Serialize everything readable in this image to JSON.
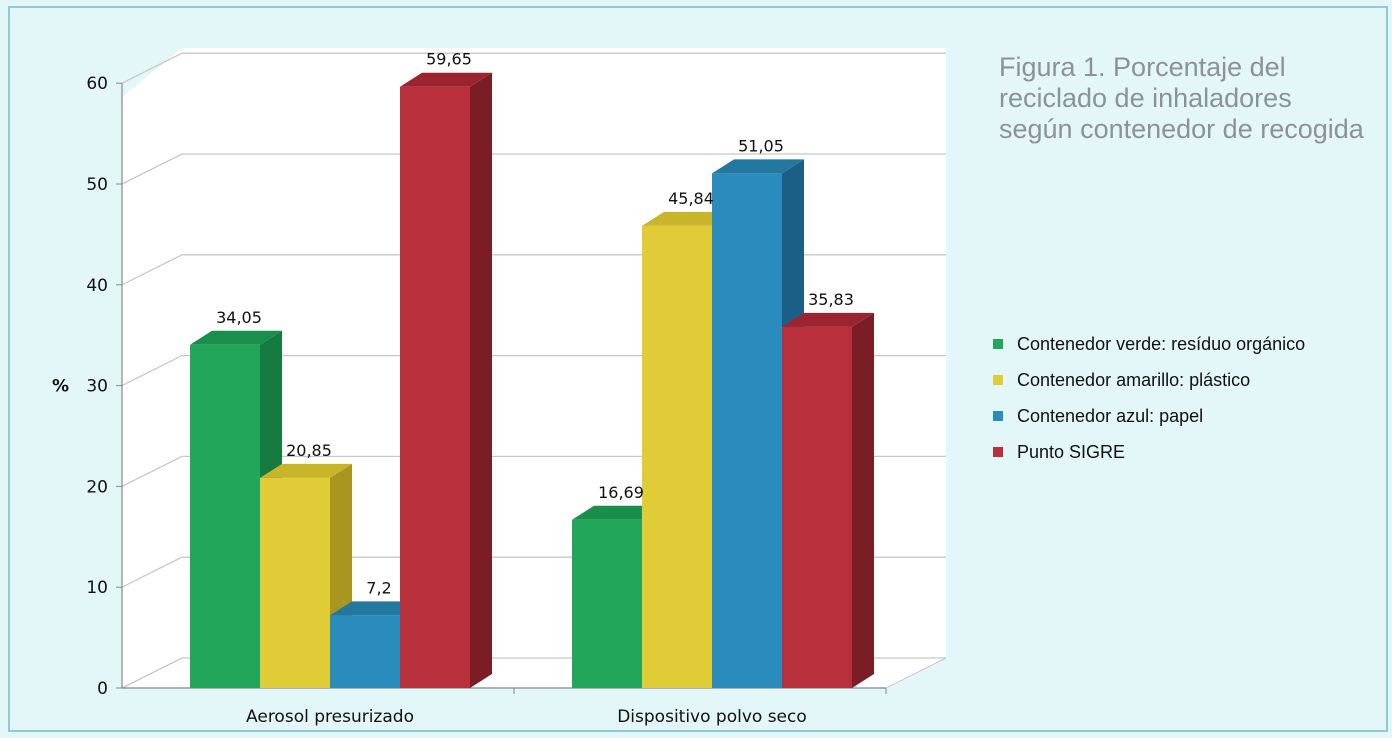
{
  "chart_data": {
    "type": "bar",
    "title": "Figura 1. Porcentaje del\nreciclado de inhaladores\nsegún contenedor de recogida",
    "ylabel": "%",
    "xlabel": "",
    "ylim": [
      0,
      60
    ],
    "yticks": [
      0,
      10,
      20,
      30,
      40,
      50,
      60
    ],
    "categories": [
      "Aerosol presurizado",
      "Dispositivo polvo seco"
    ],
    "series": [
      {
        "name": "Contenedor verde: resíduo orgánico",
        "values": [
          34.05,
          16.69
        ],
        "labels": [
          "34,05",
          "16,69"
        ],
        "color": "#21a65a",
        "side_color": "#167a41",
        "top_color": "#1a8f4c"
      },
      {
        "name": "Contenedor amarillo: plástico",
        "values": [
          20.85,
          45.84
        ],
        "labels": [
          "20,85",
          "45,84"
        ],
        "color": "#e0cc36",
        "side_color": "#a89620",
        "top_color": "#c8b52a"
      },
      {
        "name": "Contenedor azul: papel",
        "values": [
          7.2,
          51.05
        ],
        "labels": [
          "7,2",
          "51,05"
        ],
        "color": "#2a8cbc",
        "side_color": "#1c5f86",
        "top_color": "#23789f"
      },
      {
        "name": "Punto SIGRE",
        "values": [
          59.65,
          35.83
        ],
        "labels": [
          "59,65",
          "35,83"
        ],
        "color": "#b8303c",
        "side_color": "#7b1d25",
        "top_color": "#9a2530"
      }
    ],
    "grid": true,
    "legend_position": "right"
  }
}
